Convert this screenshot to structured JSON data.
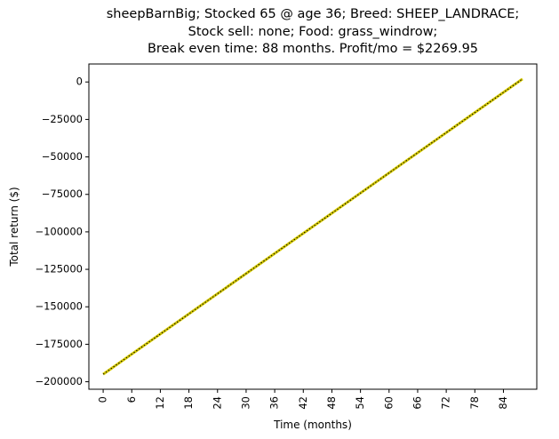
{
  "chart_data": {
    "type": "line",
    "title_lines": [
      "sheepBarnBig; Stocked 65 @ age 36; Breed: SHEEP_LANDRACE;",
      "Stock sell: none; Food: grass_windrow;",
      "Break even time: 88 months. Profit/mo = $2269.95"
    ],
    "xlabel": "Time (months)",
    "ylabel": "Total return ($)",
    "xlim": [
      -3,
      91
    ],
    "ylim": [
      -205000,
      12000
    ],
    "xticks": [
      0,
      6,
      12,
      18,
      24,
      30,
      36,
      42,
      48,
      54,
      60,
      66,
      72,
      78,
      84
    ],
    "yticks": [
      0,
      -25000,
      -50000,
      -75000,
      -100000,
      -125000,
      -150000,
      -175000,
      -200000
    ],
    "grid": false,
    "series": [
      {
        "color": "#d4c800",
        "overlay_color": "#000000",
        "overlay_style": "dotted",
        "x": [
          0,
          88
        ],
        "y": [
          -195000,
          2000
        ]
      }
    ]
  }
}
